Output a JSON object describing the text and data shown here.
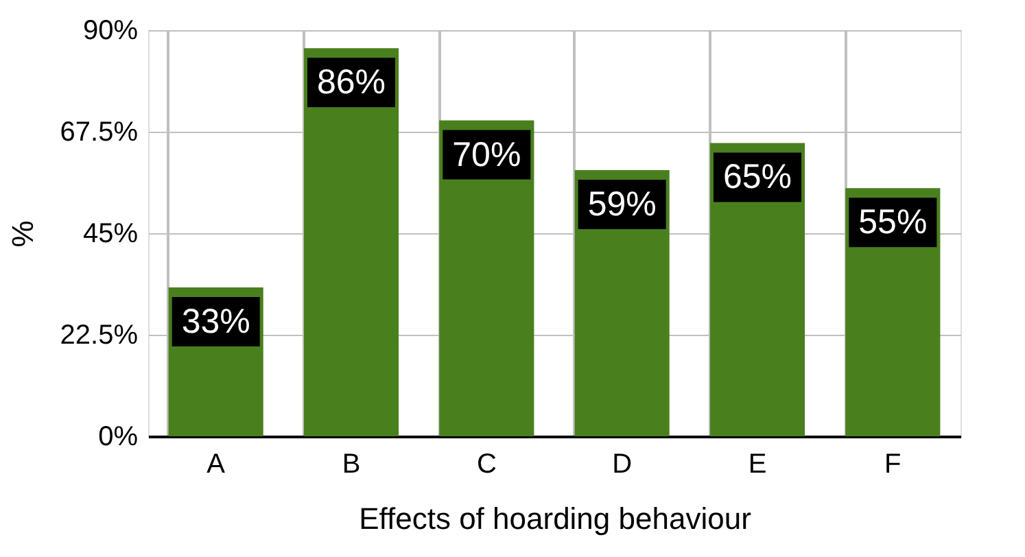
{
  "chart_data": {
    "type": "bar",
    "xlabel": "Effects of hoarding behaviour",
    "ylabel": "%",
    "categories": [
      "A",
      "B",
      "C",
      "D",
      "E",
      "F"
    ],
    "values": [
      33,
      86,
      70,
      59,
      65,
      55
    ],
    "value_labels": [
      "33%",
      "86%",
      "70%",
      "59%",
      "65%",
      "55%"
    ],
    "color": "#4a7f1e",
    "ylim": [
      0,
      90
    ],
    "yticks": [
      {
        "value": 0,
        "label": "0%"
      },
      {
        "value": 22.5,
        "label": "22.5%"
      },
      {
        "value": 45,
        "label": "45%"
      },
      {
        "value": 67.5,
        "label": "67.5%"
      },
      {
        "value": 90,
        "label": "90%"
      }
    ],
    "grid": true
  }
}
